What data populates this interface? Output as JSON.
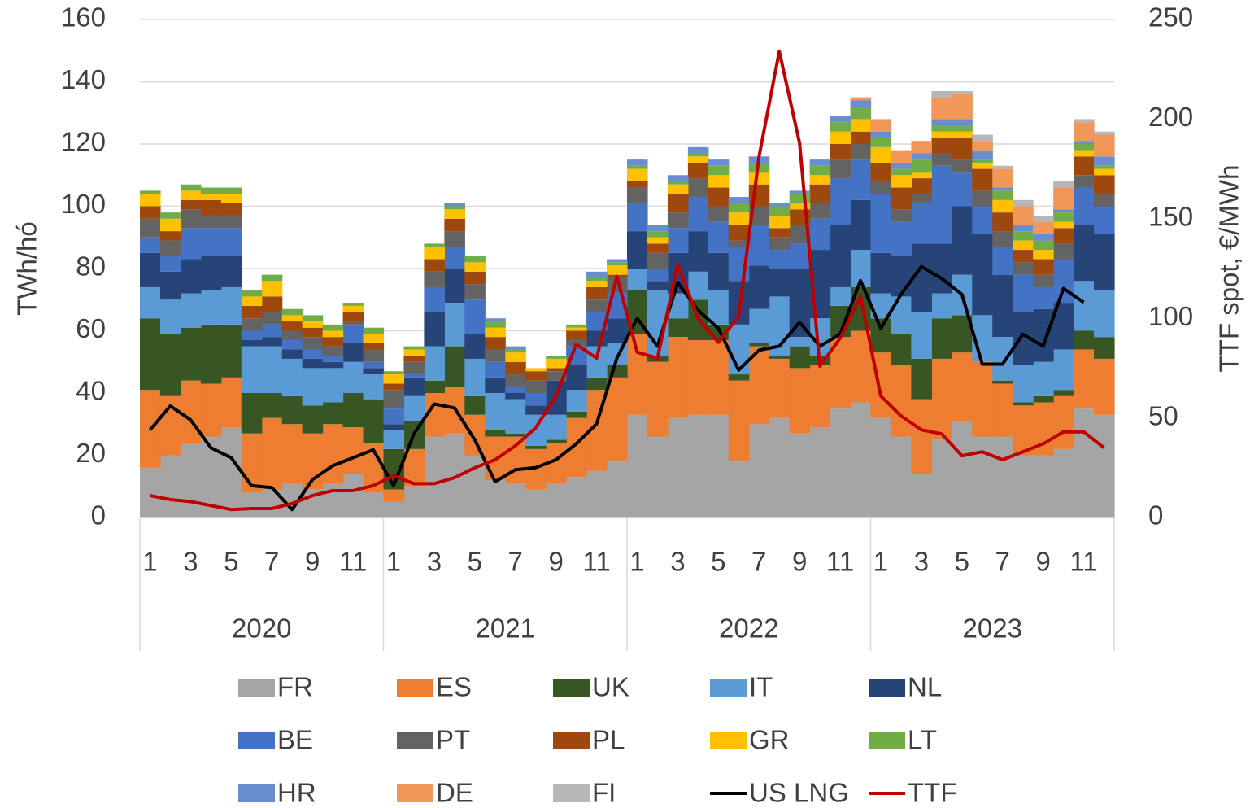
{
  "chart_data": {
    "type": "bar",
    "stacked": true,
    "y_label": "TWh/hó",
    "y2_label": "TTF spot, €/MWh",
    "categories": [
      "1",
      null,
      "3",
      null,
      "5",
      null,
      "7",
      null,
      "9",
      null,
      "11",
      null,
      "1",
      null,
      "3",
      null,
      "5",
      null,
      "7",
      null,
      "9",
      null,
      "11",
      null,
      "1",
      null,
      "3",
      null,
      "5",
      null,
      "7",
      null,
      "9",
      null,
      "11",
      null,
      "1",
      null,
      "3",
      null,
      "5",
      null,
      "7",
      null,
      "9",
      null,
      "11",
      null
    ],
    "years": [
      "2020",
      "2021",
      "2022",
      "2023"
    ],
    "ylim": [
      0,
      160
    ],
    "yticks": [
      0,
      20,
      40,
      60,
      80,
      100,
      120,
      140,
      160
    ],
    "y2lim": [
      0,
      250
    ],
    "y2ticks": [
      0,
      50,
      100,
      150,
      200,
      250
    ],
    "grid": true,
    "legend": "bottom",
    "series": [
      {
        "name": "FR",
        "color": "#a5a5a5",
        "values": [
          16,
          20,
          24,
          26,
          29,
          8,
          9,
          11,
          9,
          11,
          14,
          8,
          5,
          10,
          26,
          27,
          20,
          12,
          11,
          9,
          11,
          13,
          15,
          18,
          33,
          26,
          32,
          33,
          33,
          18,
          30,
          32,
          27,
          29,
          35,
          37,
          32,
          26,
          14,
          25,
          31,
          26,
          26,
          20,
          20,
          22,
          35,
          33
        ]
      },
      {
        "name": "ES",
        "color": "#ed7d31",
        "values": [
          25,
          19,
          20,
          17,
          16,
          19,
          23,
          19,
          18,
          19,
          15,
          16,
          4,
          12,
          14,
          15,
          13,
          14,
          15,
          13,
          13,
          19,
          26,
          27,
          26,
          24,
          26,
          24,
          24,
          26,
          25,
          19,
          21,
          20,
          23,
          23,
          21,
          23,
          24,
          26,
          22,
          24,
          17,
          16,
          17,
          17,
          19,
          18
        ]
      },
      {
        "name": "UK",
        "color": "#375623",
        "values": [
          23,
          20,
          17,
          19,
          17,
          13,
          8,
          9,
          9,
          7,
          11,
          14,
          13,
          9,
          4,
          13,
          6,
          2,
          1,
          1,
          1,
          2,
          4,
          4,
          14,
          2,
          6,
          13,
          5,
          2,
          1,
          1,
          7,
          3,
          10,
          14,
          11,
          10,
          13,
          13,
          12,
          0,
          1,
          1,
          2,
          2,
          6,
          7
        ]
      },
      {
        "name": "IT",
        "color": "#5b9bd5",
        "values": [
          10,
          11,
          11,
          11,
          12,
          15,
          15,
          12,
          12,
          11,
          10,
          8,
          6,
          8,
          11,
          14,
          12,
          12,
          11,
          10,
          8,
          7,
          10,
          7,
          7,
          21,
          8,
          9,
          11,
          16,
          11,
          19,
          3,
          12,
          6,
          12,
          8,
          12,
          15,
          8,
          13,
          15,
          14,
          12,
          11,
          13,
          16,
          15
        ]
      },
      {
        "name": "NL",
        "color": "#264478",
        "values": [
          11,
          9,
          11,
          11,
          10,
          2,
          3,
          3,
          3,
          2,
          6,
          2,
          2,
          6,
          11,
          11,
          8,
          5,
          2,
          3,
          11,
          8,
          5,
          8,
          12,
          3,
          13,
          13,
          12,
          14,
          14,
          9,
          22,
          22,
          20,
          16,
          13,
          13,
          22,
          16,
          22,
          26,
          20,
          17,
          17,
          15,
          18,
          18
        ]
      },
      {
        "name": "BE",
        "color": "#4472c4",
        "values": [
          5,
          5,
          10,
          9,
          9,
          3,
          4,
          3,
          3,
          2,
          6,
          2,
          5,
          1,
          8,
          7,
          11,
          5,
          2,
          4,
          0,
          6,
          6,
          8,
          9,
          4,
          8,
          11,
          10,
          11,
          13,
          6,
          8,
          10,
          15,
          13,
          19,
          11,
          13,
          25,
          11,
          9,
          9,
          12,
          7,
          14,
          12,
          9
        ]
      },
      {
        "name": "PT",
        "color": "#636363",
        "values": [
          6,
          5,
          6,
          4,
          4,
          4,
          4,
          3,
          4,
          3,
          1,
          4,
          6,
          4,
          5,
          5,
          5,
          4,
          4,
          4,
          3,
          2,
          4,
          5,
          5,
          5,
          5,
          6,
          5,
          2,
          6,
          4,
          6,
          5,
          6,
          5,
          4,
          4,
          3,
          4,
          4,
          5,
          5,
          4,
          4,
          5,
          4,
          4
        ]
      },
      {
        "name": "PL",
        "color": "#9e480e",
        "values": [
          4,
          3,
          3,
          5,
          4,
          4,
          5,
          3,
          3,
          3,
          3,
          2,
          2,
          2,
          4,
          4,
          4,
          4,
          4,
          3,
          1,
          3,
          4,
          1,
          2,
          3,
          6,
          5,
          6,
          5,
          7,
          3,
          5,
          6,
          5,
          4,
          6,
          7,
          5,
          5,
          7,
          7,
          6,
          4,
          5,
          5,
          6,
          6
        ]
      },
      {
        "name": "GR",
        "color": "#ffc000",
        "values": [
          4,
          4,
          3,
          2,
          3,
          3,
          5,
          2,
          2,
          2,
          2,
          3,
          3,
          2,
          4,
          3,
          3,
          3,
          3,
          1,
          3,
          1,
          2,
          3,
          4,
          2,
          3,
          2,
          4,
          4,
          4,
          4,
          2,
          3,
          4,
          4,
          5,
          4,
          2,
          2,
          2,
          2,
          4,
          3,
          3,
          2,
          2,
          2
        ]
      },
      {
        "name": "LT",
        "color": "#70ad47",
        "values": [
          1,
          2,
          2,
          2,
          2,
          2,
          2,
          2,
          2,
          2,
          1,
          2,
          1,
          1,
          1,
          1,
          2,
          2,
          1,
          0,
          1,
          1,
          1,
          1,
          1,
          2,
          1,
          1,
          3,
          3,
          3,
          3,
          3,
          3,
          3,
          4,
          3,
          2,
          4,
          2,
          2,
          1,
          3,
          3,
          3,
          3,
          2,
          1
        ]
      },
      {
        "name": "HR",
        "color": "#698ed0",
        "values": [
          0,
          0,
          0,
          0,
          0,
          0,
          0,
          0,
          0,
          0,
          0,
          0,
          0,
          0,
          0,
          1,
          0,
          1,
          1,
          0,
          0,
          0,
          2,
          1,
          2,
          2,
          2,
          2,
          2,
          2,
          2,
          1,
          1,
          2,
          2,
          2,
          2,
          2,
          2,
          2,
          2,
          3,
          1,
          2,
          2,
          1,
          1,
          3
        ]
      },
      {
        "name": "DE",
        "color": "#f1975a",
        "values": [
          0,
          0,
          0,
          0,
          0,
          0,
          0,
          0,
          0,
          0,
          0,
          0,
          0,
          0,
          0,
          0,
          0,
          0,
          0,
          0,
          0,
          0,
          0,
          0,
          0,
          0,
          0,
          0,
          0,
          0,
          0,
          0,
          0,
          0,
          0,
          1,
          4,
          4,
          4,
          7,
          8,
          3,
          6,
          6,
          4,
          7,
          6,
          7
        ]
      },
      {
        "name": "FI",
        "color": "#b7b7b7",
        "values": [
          0,
          0,
          0,
          0,
          0,
          0,
          0,
          0,
          0,
          0,
          0,
          0,
          0,
          0,
          0,
          0,
          0,
          0,
          0,
          0,
          0,
          0,
          0,
          0,
          0,
          0,
          0,
          0,
          0,
          0,
          0,
          0,
          0,
          0,
          0,
          0,
          0,
          0,
          0,
          2,
          1,
          2,
          1,
          2,
          2,
          2,
          1,
          1
        ]
      },
      {
        "name": "US LNG",
        "color": "#000000",
        "type": "line",
        "axis": "y2",
        "values": [
          44,
          56,
          49,
          35,
          30,
          16,
          15,
          4,
          19,
          26,
          30,
          34,
          16,
          42,
          57,
          55,
          39,
          18,
          24,
          25,
          29,
          37,
          47,
          80,
          100,
          86,
          118,
          104,
          95,
          74,
          84,
          86,
          98,
          86,
          92,
          119,
          95,
          112,
          126,
          120,
          112,
          77,
          77,
          92,
          86,
          115,
          108,
          null
        ]
      },
      {
        "name": "TTF",
        "color": "#c00000",
        "type": "line",
        "axis": "y2",
        "values": [
          11,
          9,
          8,
          6,
          4,
          4.5,
          4.5,
          7,
          11,
          13.5,
          13.5,
          16,
          21,
          17,
          17,
          20,
          25,
          29,
          36,
          45,
          61,
          87,
          80,
          121,
          83,
          80,
          127,
          100,
          88,
          101,
          181,
          234,
          188,
          76,
          90,
          111,
          61,
          51,
          44,
          42,
          31,
          33,
          29,
          33,
          37,
          43,
          43,
          35
        ]
      }
    ]
  }
}
